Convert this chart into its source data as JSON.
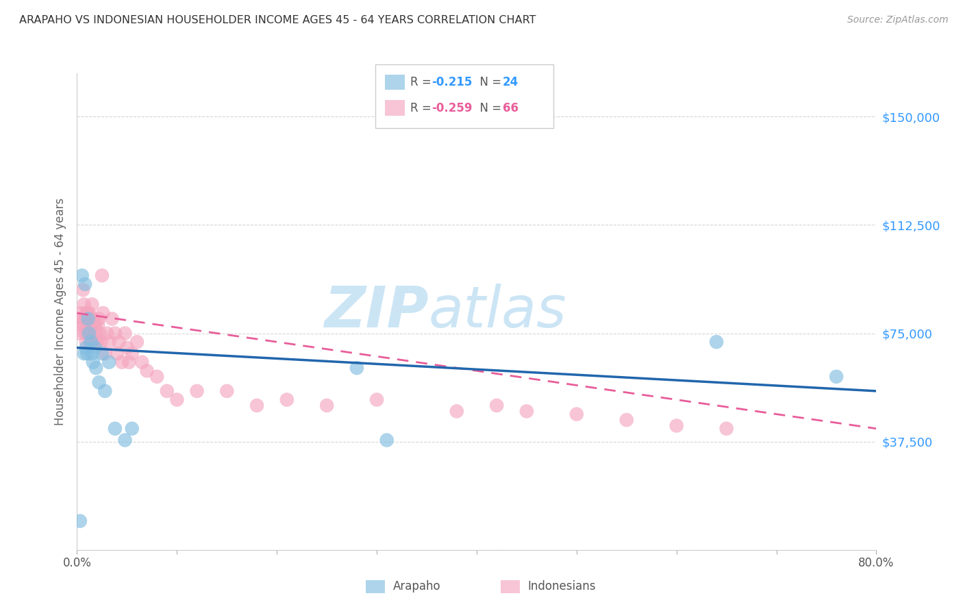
{
  "title": "ARAPAHO VS INDONESIAN HOUSEHOLDER INCOME AGES 45 - 64 YEARS CORRELATION CHART",
  "source": "Source: ZipAtlas.com",
  "ylabel": "Householder Income Ages 45 - 64 years",
  "yticks": [
    0,
    37500,
    75000,
    112500,
    150000
  ],
  "ytick_labels": [
    "",
    "$37,500",
    "$75,000",
    "$112,500",
    "$150,000"
  ],
  "xmin": 0.0,
  "xmax": 0.8,
  "ymin": 0,
  "ymax": 165000,
  "arapaho_color": "#82bde0",
  "indonesian_color": "#f4a6bf",
  "arapaho_line_color": "#2166ac",
  "indonesian_line_color": "#e85d9a",
  "arapaho_R": -0.215,
  "arapaho_N": 24,
  "indonesian_R": -0.259,
  "indonesian_N": 66,
  "watermark_zip": "ZIP",
  "watermark_atlas": "atlas",
  "watermark_color": "#cce5f5",
  "arapaho_x": [
    0.003,
    0.005,
    0.007,
    0.008,
    0.009,
    0.01,
    0.011,
    0.012,
    0.014,
    0.015,
    0.016,
    0.018,
    0.019,
    0.022,
    0.025,
    0.028,
    0.032,
    0.038,
    0.048,
    0.055,
    0.28,
    0.31,
    0.64,
    0.76
  ],
  "arapaho_y": [
    10000,
    95000,
    68000,
    92000,
    70000,
    68000,
    80000,
    75000,
    72000,
    68000,
    65000,
    70000,
    63000,
    58000,
    68000,
    55000,
    65000,
    42000,
    38000,
    42000,
    63000,
    38000,
    72000,
    60000
  ],
  "indonesian_x": [
    0.002,
    0.003,
    0.004,
    0.005,
    0.006,
    0.007,
    0.007,
    0.008,
    0.008,
    0.009,
    0.009,
    0.01,
    0.01,
    0.011,
    0.011,
    0.012,
    0.012,
    0.013,
    0.013,
    0.014,
    0.015,
    0.015,
    0.016,
    0.016,
    0.017,
    0.018,
    0.018,
    0.019,
    0.02,
    0.021,
    0.022,
    0.023,
    0.024,
    0.025,
    0.026,
    0.028,
    0.03,
    0.032,
    0.035,
    0.038,
    0.04,
    0.042,
    0.045,
    0.048,
    0.05,
    0.052,
    0.055,
    0.06,
    0.065,
    0.07,
    0.08,
    0.09,
    0.1,
    0.12,
    0.15,
    0.18,
    0.21,
    0.25,
    0.3,
    0.38,
    0.42,
    0.45,
    0.5,
    0.55,
    0.6,
    0.65
  ],
  "indonesian_y": [
    75000,
    78000,
    82000,
    80000,
    90000,
    85000,
    78000,
    80000,
    75000,
    82000,
    72000,
    80000,
    75000,
    82000,
    78000,
    82000,
    75000,
    80000,
    72000,
    78000,
    85000,
    72000,
    80000,
    75000,
    78000,
    78000,
    72000,
    75000,
    72000,
    78000,
    80000,
    75000,
    72000,
    95000,
    82000,
    68000,
    75000,
    72000,
    80000,
    75000,
    68000,
    72000,
    65000,
    75000,
    70000,
    65000,
    68000,
    72000,
    65000,
    62000,
    60000,
    55000,
    52000,
    55000,
    55000,
    50000,
    52000,
    50000,
    52000,
    48000,
    50000,
    48000,
    47000,
    45000,
    43000,
    42000
  ],
  "arapaho_line_x": [
    0.0,
    0.8
  ],
  "arapaho_line_y": [
    70000,
    55000
  ],
  "indonesian_line_x": [
    0.0,
    0.8
  ],
  "indonesian_line_y": [
    82000,
    42000
  ]
}
